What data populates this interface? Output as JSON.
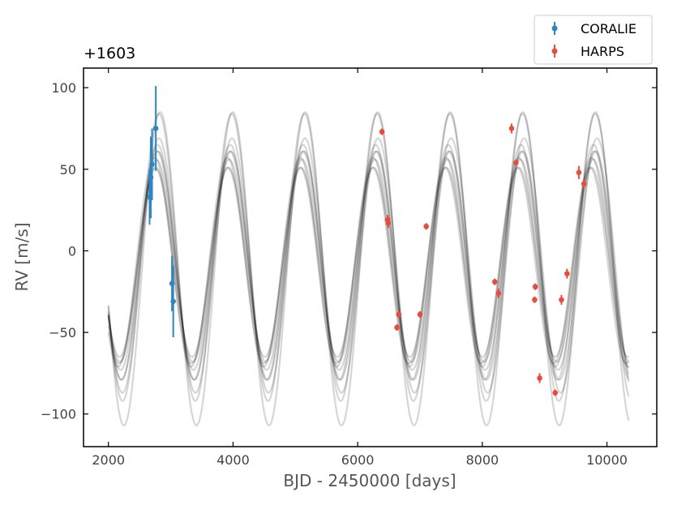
{
  "chart_data": {
    "type": "scatter",
    "title": "",
    "offset_label": "+1603",
    "xlabel": "BJD - 2450000 [days]",
    "ylabel": "RV [m/s]",
    "xlim": [
      1600,
      10800
    ],
    "ylim": [
      -120,
      112
    ],
    "xticks": [
      2000,
      4000,
      6000,
      8000,
      10000
    ],
    "xtick_labels": [
      "2000",
      "4000",
      "6000",
      "8000",
      "10000"
    ],
    "yticks": [
      -100,
      -50,
      0,
      50,
      100
    ],
    "ytick_labels": [
      "−100",
      "−50",
      "0",
      "50",
      "100"
    ],
    "grid": false,
    "legend_position": "top-right outside",
    "model": {
      "type": "line",
      "x_range": [
        2000,
        10350
      ],
      "color": "#000000",
      "curves": [
        {
          "amp": 58,
          "offset": -7,
          "period": 1165,
          "peak": 2760
        },
        {
          "amp": 62,
          "offset": -6,
          "period": 1168,
          "peak": 2770
        },
        {
          "amp": 60,
          "offset": -9,
          "period": 1163,
          "peak": 2750
        },
        {
          "amp": 67,
          "offset": -6,
          "period": 1170,
          "peak": 2780
        },
        {
          "amp": 72,
          "offset": -7,
          "period": 1166,
          "peak": 2790
        },
        {
          "amp": 78,
          "offset": -9,
          "period": 1172,
          "peak": 2810
        },
        {
          "amp": 88,
          "offset": -4,
          "period": 1167,
          "peak": 2810
        },
        {
          "amp": 96,
          "offset": -11,
          "period": 1164,
          "peak": 2830
        },
        {
          "amp": 64,
          "offset": -7,
          "period": 1169,
          "peak": 2740
        },
        {
          "amp": 70,
          "offset": -9,
          "period": 1171,
          "peak": 2795
        }
      ]
    },
    "series": [
      {
        "name": "CORALIE",
        "color": "#2e86c1",
        "points": [
          {
            "x": 2660,
            "y": 33,
            "err": 17
          },
          {
            "x": 2680,
            "y": 45,
            "err": 25
          },
          {
            "x": 2700,
            "y": 53,
            "err": 22
          },
          {
            "x": 2760,
            "y": 75,
            "err": 26
          },
          {
            "x": 3020,
            "y": -20,
            "err": 17
          },
          {
            "x": 3040,
            "y": -31,
            "err": 22
          }
        ]
      },
      {
        "name": "HARPS",
        "color": "#e74c3c",
        "points": [
          {
            "x": 6390,
            "y": 73,
            "err": 2
          },
          {
            "x": 6480,
            "y": 19,
            "err": 3
          },
          {
            "x": 6490,
            "y": 17,
            "err": 3
          },
          {
            "x": 6630,
            "y": -47,
            "err": 2
          },
          {
            "x": 6660,
            "y": -39,
            "err": 2
          },
          {
            "x": 7000,
            "y": -39,
            "err": 2
          },
          {
            "x": 7100,
            "y": 15,
            "err": 2
          },
          {
            "x": 8200,
            "y": -19,
            "err": 2
          },
          {
            "x": 8260,
            "y": -26,
            "err": 3
          },
          {
            "x": 8470,
            "y": 75,
            "err": 3
          },
          {
            "x": 8540,
            "y": 54,
            "err": 2
          },
          {
            "x": 8850,
            "y": -22,
            "err": 2
          },
          {
            "x": 8840,
            "y": -30,
            "err": 2
          },
          {
            "x": 8920,
            "y": -78,
            "err": 3
          },
          {
            "x": 9170,
            "y": -87,
            "err": 2
          },
          {
            "x": 9270,
            "y": -30,
            "err": 3
          },
          {
            "x": 9360,
            "y": -14,
            "err": 3
          },
          {
            "x": 9550,
            "y": 48,
            "err": 4
          },
          {
            "x": 9630,
            "y": 41,
            "err": 3
          }
        ]
      }
    ]
  }
}
